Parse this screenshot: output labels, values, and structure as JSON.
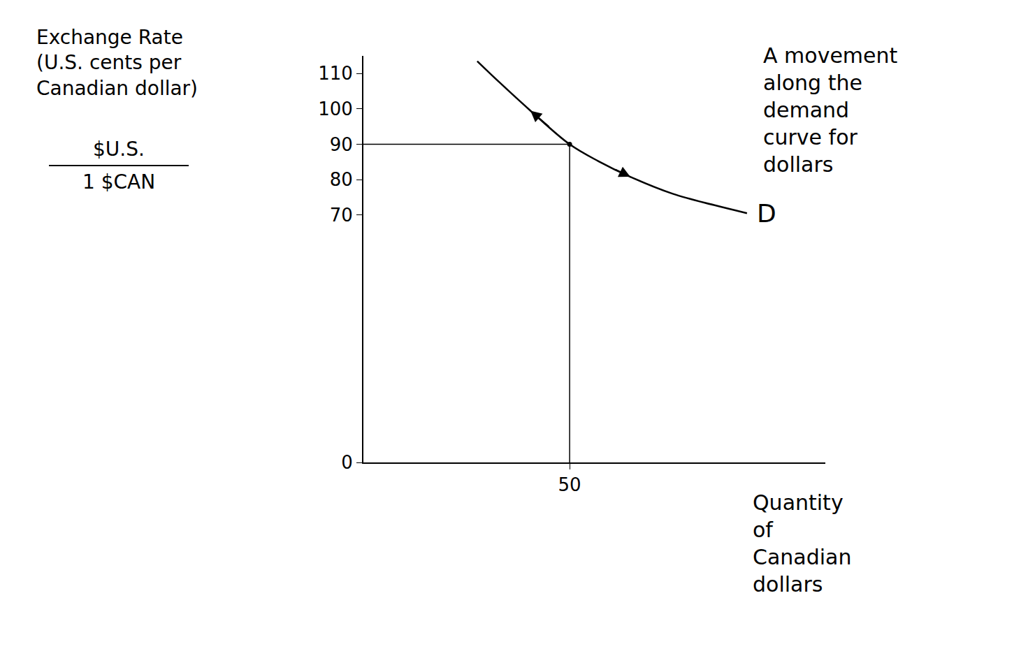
{
  "chart_data": {
    "type": "line",
    "y_label": "Exchange Rate (U.S. cents per Canadian dollar)",
    "y_unit": {
      "numerator": "$U.S.",
      "denominator": "1 $CAN"
    },
    "x_label": "Quantity of Canadian dollars",
    "annotation": "A movement along the demand curve for dollars",
    "series": [
      {
        "name": "D",
        "color": "#000000",
        "line_style": "solid",
        "x": [
          27.6,
          33,
          40.5,
          50,
          57,
          64.7,
          75,
          85,
          93
        ],
        "values": [
          113.5,
          107.5,
          99.5,
          90,
          85.2,
          80.8,
          76,
          72.8,
          70.5
        ]
      }
    ],
    "point": {
      "x": 50,
      "y": 90
    },
    "xlim": [
      0,
      112
    ],
    "xticks": [
      50
    ],
    "ylim": [
      0,
      115
    ],
    "yticks": [
      0,
      70,
      80,
      90,
      100,
      110
    ],
    "grid": false
  }
}
